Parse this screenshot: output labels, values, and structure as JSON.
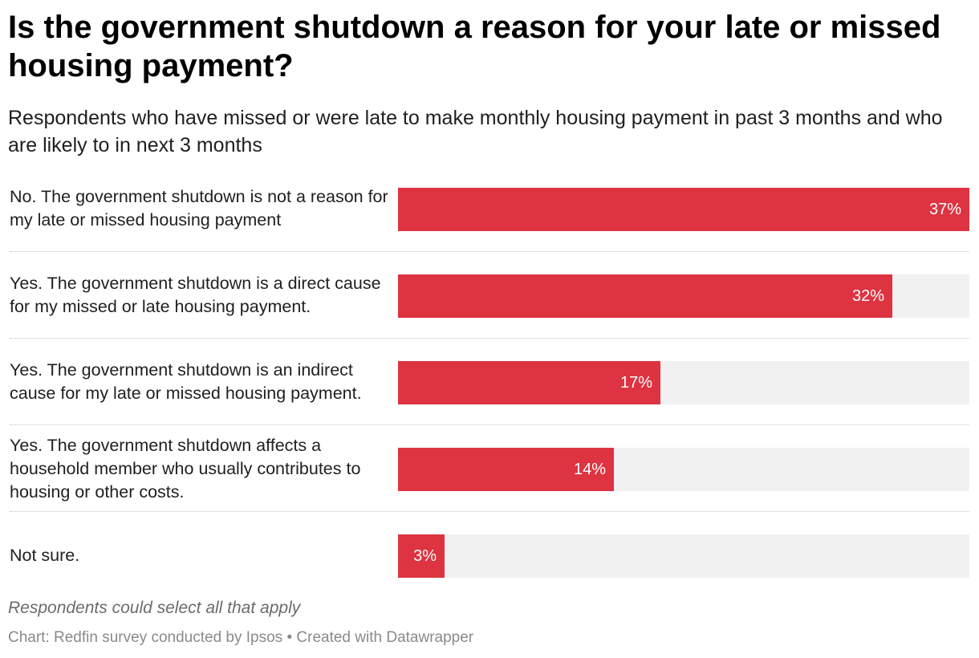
{
  "title": "Is the government shutdown a reason for your late or missed housing payment?",
  "subtitle": "Respondents who have missed or were late to make monthly housing payment in past 3 months and who are likely to in next 3 months",
  "note": "Respondents could select all that apply",
  "footer": {
    "source": "Chart: Redfin survey conducted by Ipsos",
    "separator": " • ",
    "credit": "Created with Datawrapper"
  },
  "colors": {
    "bar": "#de3341",
    "track": "#f1f1f1",
    "value_text": "#ffffff"
  },
  "chart_data": {
    "type": "bar",
    "orientation": "horizontal",
    "title": "Is the government shutdown a reason for your late or missed housing payment?",
    "subtitle": "Respondents who have missed or were late to make monthly housing payment in past 3 months and who are likely to in next 3 months",
    "xlabel": "",
    "ylabel": "",
    "xlim": [
      0,
      37
    ],
    "unit": "%",
    "grid": false,
    "legend": "none",
    "categories": [
      "No. The government shutdown is not a reason for my late or missed housing payment",
      "Yes. The government shutdown is a direct cause for my missed or late housing payment.",
      "Yes. The government shutdown is an indirect cause for my late or missed housing payment.",
      "Yes. The government shutdown affects a household member who usually contributes to housing or other costs.",
      "Not sure."
    ],
    "values": [
      37,
      32,
      17,
      14,
      3
    ],
    "value_labels": [
      "37%",
      "32%",
      "17%",
      "14%",
      "3%"
    ]
  }
}
